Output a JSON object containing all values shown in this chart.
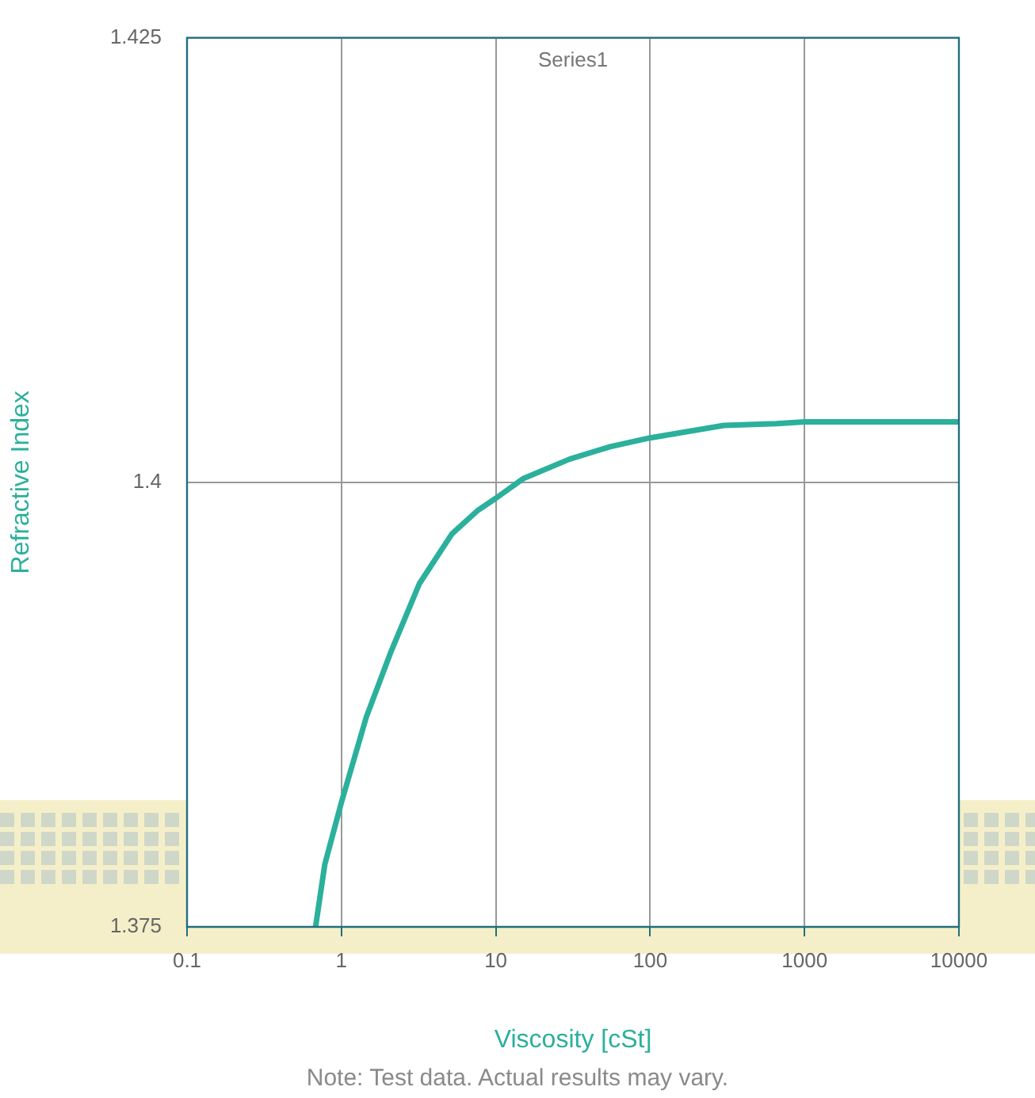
{
  "chart_data": {
    "type": "line",
    "xlabel": "Viscosity [cSt]",
    "ylabel": "Refractive Index",
    "annotations": [
      "Note: Test data. Actual results may vary."
    ],
    "log": "x",
    "grid": true,
    "legend": "top",
    "marker": "none",
    "line_style": "solid",
    "xlim": [
      0.1,
      10000
    ],
    "xticks": [
      0.1,
      1,
      10,
      100,
      1000,
      10000
    ],
    "ylim": [
      1.375,
      1.425
    ],
    "yticks": [
      1.375,
      1.4,
      1.425
    ],
    "series": [
      {
        "name": "Series1",
        "color": "#2bb09c",
        "x": [
          0.68,
          0.78,
          1.0,
          1.45,
          2.1,
          3.2,
          5.2,
          7.6,
          10,
          15,
          30,
          55,
          100,
          300,
          660,
          1000,
          10000
        ],
        "values": [
          1.375,
          1.3785,
          1.382,
          1.3868,
          1.3905,
          1.3943,
          1.3971,
          1.3984,
          1.3991,
          1.4002,
          1.4013,
          1.402,
          1.4025,
          1.4032,
          1.4033,
          1.4034,
          1.4034
        ]
      }
    ]
  }
}
